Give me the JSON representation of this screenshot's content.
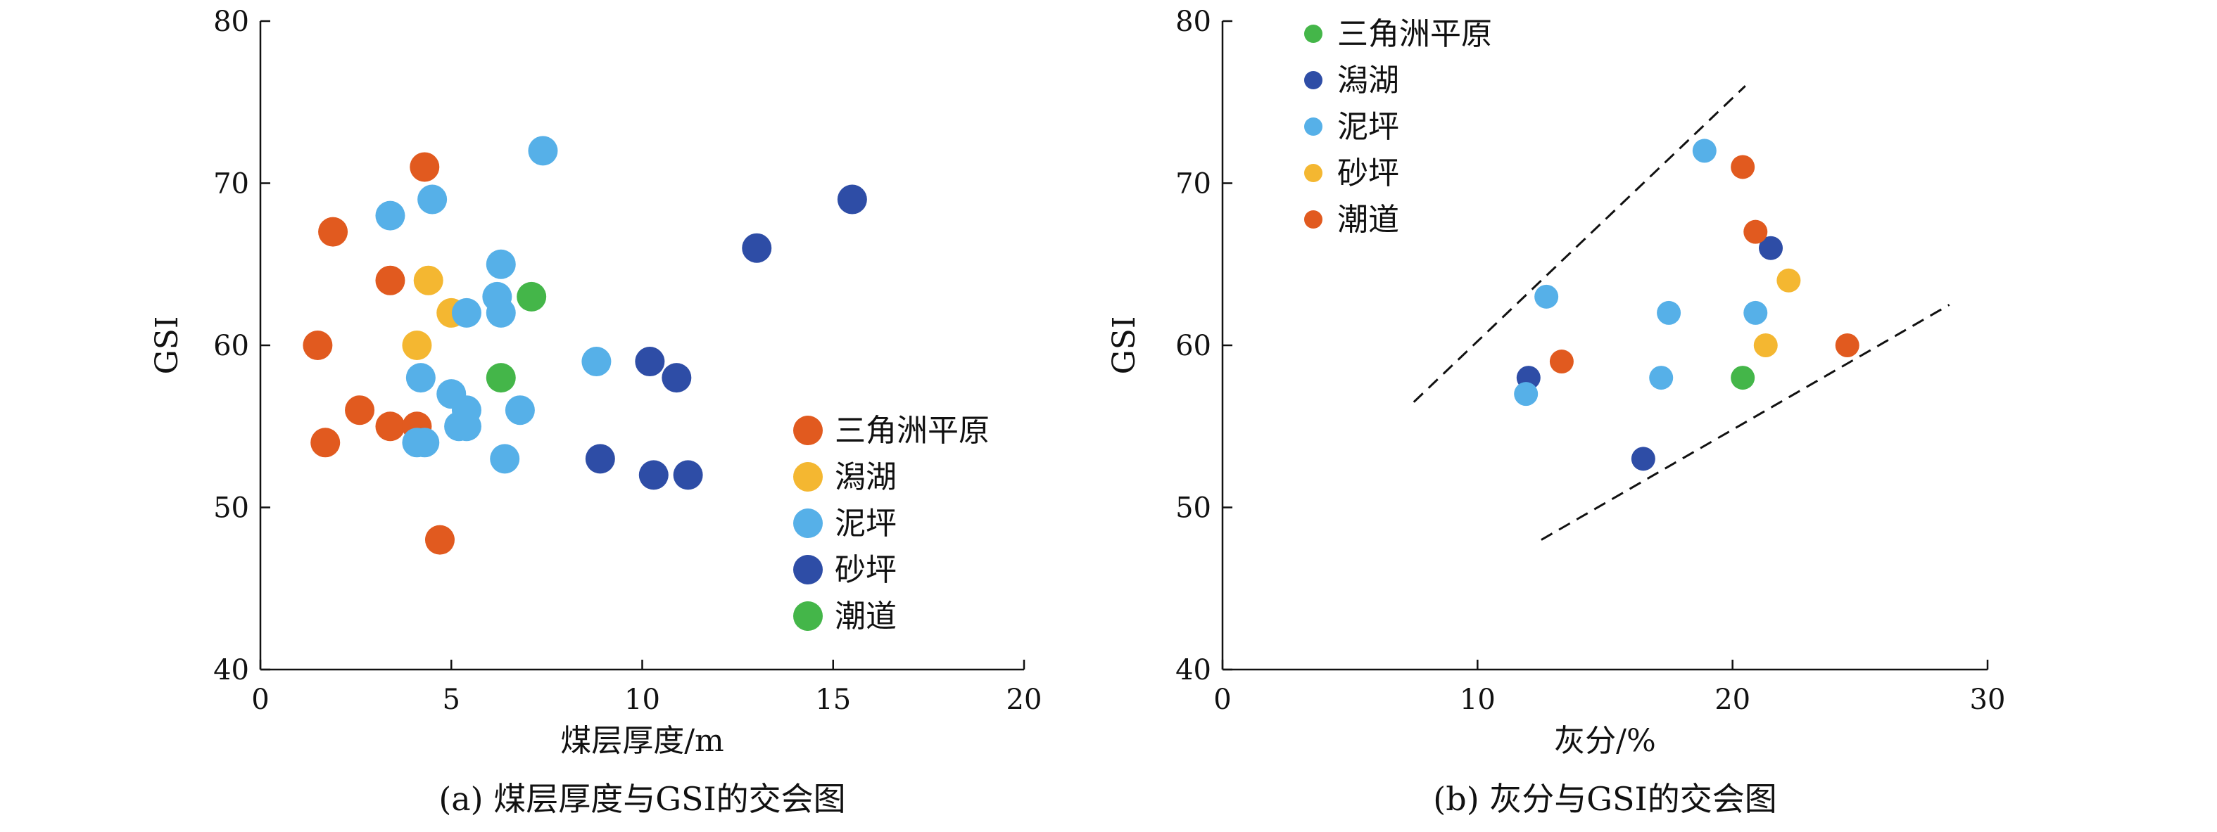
{
  "colors": {
    "orange": "#E15A1F",
    "yellow": "#F4B731",
    "lightblue": "#56B0E8",
    "darkblue": "#2E4DA6",
    "green": "#44B649"
  },
  "chart_data": [
    {
      "type": "scatter",
      "xlabel": "煤层厚度/m",
      "ylabel": "GSI",
      "caption": "(a) 煤层厚度与GSI的交会图",
      "xlim": [
        0,
        20
      ],
      "ylim": [
        40,
        80
      ],
      "xticks": [
        "0",
        "5",
        "10",
        "15",
        "20"
      ],
      "yticks": [
        "40",
        "50",
        "60",
        "70",
        "80"
      ],
      "legend_placement": "lower-right",
      "series": [
        {
          "name": "三角洲平原",
          "color": "#E15A1F",
          "points": [
            [
              1.9,
              67
            ],
            [
              4.3,
              71
            ],
            [
              3.4,
              64
            ],
            [
              1.5,
              60
            ],
            [
              2.6,
              56
            ],
            [
              1.7,
              54
            ],
            [
              3.4,
              55
            ],
            [
              4.1,
              55
            ],
            [
              4.7,
              48
            ]
          ]
        },
        {
          "name": "潟湖",
          "color": "#F4B731",
          "points": [
            [
              4.4,
              64
            ],
            [
              5.0,
              62
            ],
            [
              4.1,
              60
            ]
          ]
        },
        {
          "name": "泥坪",
          "color": "#56B0E8",
          "points": [
            [
              7.4,
              72
            ],
            [
              3.4,
              68
            ],
            [
              4.5,
              69
            ],
            [
              6.3,
              65
            ],
            [
              6.2,
              63
            ],
            [
              6.3,
              62
            ],
            [
              5.4,
              62
            ],
            [
              4.2,
              58
            ],
            [
              5.0,
              57
            ],
            [
              5.4,
              56
            ],
            [
              6.8,
              56
            ],
            [
              5.2,
              55
            ],
            [
              5.4,
              55
            ],
            [
              4.1,
              54
            ],
            [
              4.3,
              54
            ],
            [
              6.4,
              53
            ],
            [
              8.8,
              59
            ]
          ]
        },
        {
          "name": "砂坪",
          "color": "#2E4DA6",
          "points": [
            [
              15.5,
              69
            ],
            [
              13.0,
              66
            ],
            [
              10.2,
              59
            ],
            [
              10.9,
              58
            ],
            [
              8.9,
              53
            ],
            [
              10.3,
              52
            ],
            [
              11.2,
              52
            ]
          ]
        },
        {
          "name": "潮道",
          "color": "#44B649",
          "points": [
            [
              7.1,
              63
            ],
            [
              6.3,
              58
            ]
          ]
        }
      ]
    },
    {
      "type": "scatter",
      "xlabel": "灰分/%",
      "ylabel": "GSI",
      "caption": "(b) 灰分与GSI的交会图",
      "xlim": [
        0,
        30
      ],
      "ylim": [
        40,
        80
      ],
      "xticks": [
        "0",
        "10",
        "20",
        "30"
      ],
      "yticks": [
        "40",
        "50",
        "60",
        "70",
        "80"
      ],
      "legend_placement": "top-left",
      "guide_lines": [
        {
          "from": [
            7.5,
            56.5
          ],
          "to": [
            20.5,
            76
          ]
        },
        {
          "from": [
            12.5,
            48
          ],
          "to": [
            28.5,
            62.5
          ]
        }
      ],
      "series": [
        {
          "name": "三角洲平原",
          "color": "#44B649",
          "points": [
            [
              20.4,
              58
            ]
          ]
        },
        {
          "name": "潟湖",
          "color": "#2E4DA6",
          "points": [
            [
              12.0,
              58
            ],
            [
              16.5,
              53
            ],
            [
              21.5,
              66
            ]
          ]
        },
        {
          "name": "泥坪",
          "color": "#56B0E8",
          "points": [
            [
              18.9,
              72
            ],
            [
              12.7,
              63
            ],
            [
              17.5,
              62
            ],
            [
              20.9,
              62
            ],
            [
              17.2,
              58
            ],
            [
              11.9,
              57
            ]
          ]
        },
        {
          "name": "砂坪",
          "color": "#F4B731",
          "points": [
            [
              22.2,
              64
            ],
            [
              21.3,
              60
            ]
          ]
        },
        {
          "name": "潮道",
          "color": "#E15A1F",
          "points": [
            [
              20.4,
              71
            ],
            [
              20.9,
              67
            ],
            [
              24.5,
              60
            ],
            [
              13.3,
              59
            ]
          ]
        }
      ]
    }
  ]
}
